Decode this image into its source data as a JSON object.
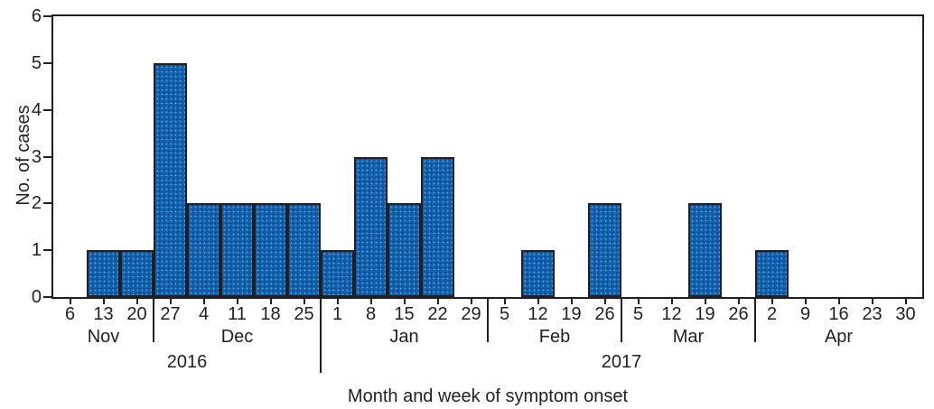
{
  "chart_data": {
    "type": "bar",
    "title": "",
    "xlabel": "Month and week of symptom onset",
    "ylabel": "No. of cases",
    "ylim": [
      0,
      6
    ],
    "yticks": [
      0,
      1,
      2,
      3,
      4,
      5,
      6
    ],
    "grid": "off",
    "legend": "none",
    "week_labels": [
      "6",
      "13",
      "20",
      "27",
      "4",
      "11",
      "18",
      "25",
      "1",
      "8",
      "15",
      "22",
      "29",
      "5",
      "12",
      "19",
      "26",
      "5",
      "12",
      "19",
      "26",
      "2",
      "9",
      "16",
      "23",
      "30"
    ],
    "values": [
      0,
      1,
      1,
      5,
      2,
      2,
      2,
      2,
      1,
      3,
      2,
      3,
      0,
      0,
      1,
      0,
      2,
      0,
      0,
      2,
      0,
      1,
      0,
      0,
      0,
      0
    ],
    "months": [
      {
        "label": "Nov",
        "weeks": 3
      },
      {
        "label": "Dec",
        "weeks": 5
      },
      {
        "label": "Jan",
        "weeks": 5
      },
      {
        "label": "Feb",
        "weeks": 4
      },
      {
        "label": "Mar",
        "weeks": 4
      },
      {
        "label": "Apr",
        "weeks": 5
      }
    ],
    "years": [
      {
        "label": "2016",
        "weeks": 8
      },
      {
        "label": "2017",
        "weeks": 18
      }
    ],
    "colors": {
      "bar_fill": "#1061ae",
      "bar_border": "#231f20",
      "axis": "#231f20",
      "text": "#231f20"
    }
  }
}
